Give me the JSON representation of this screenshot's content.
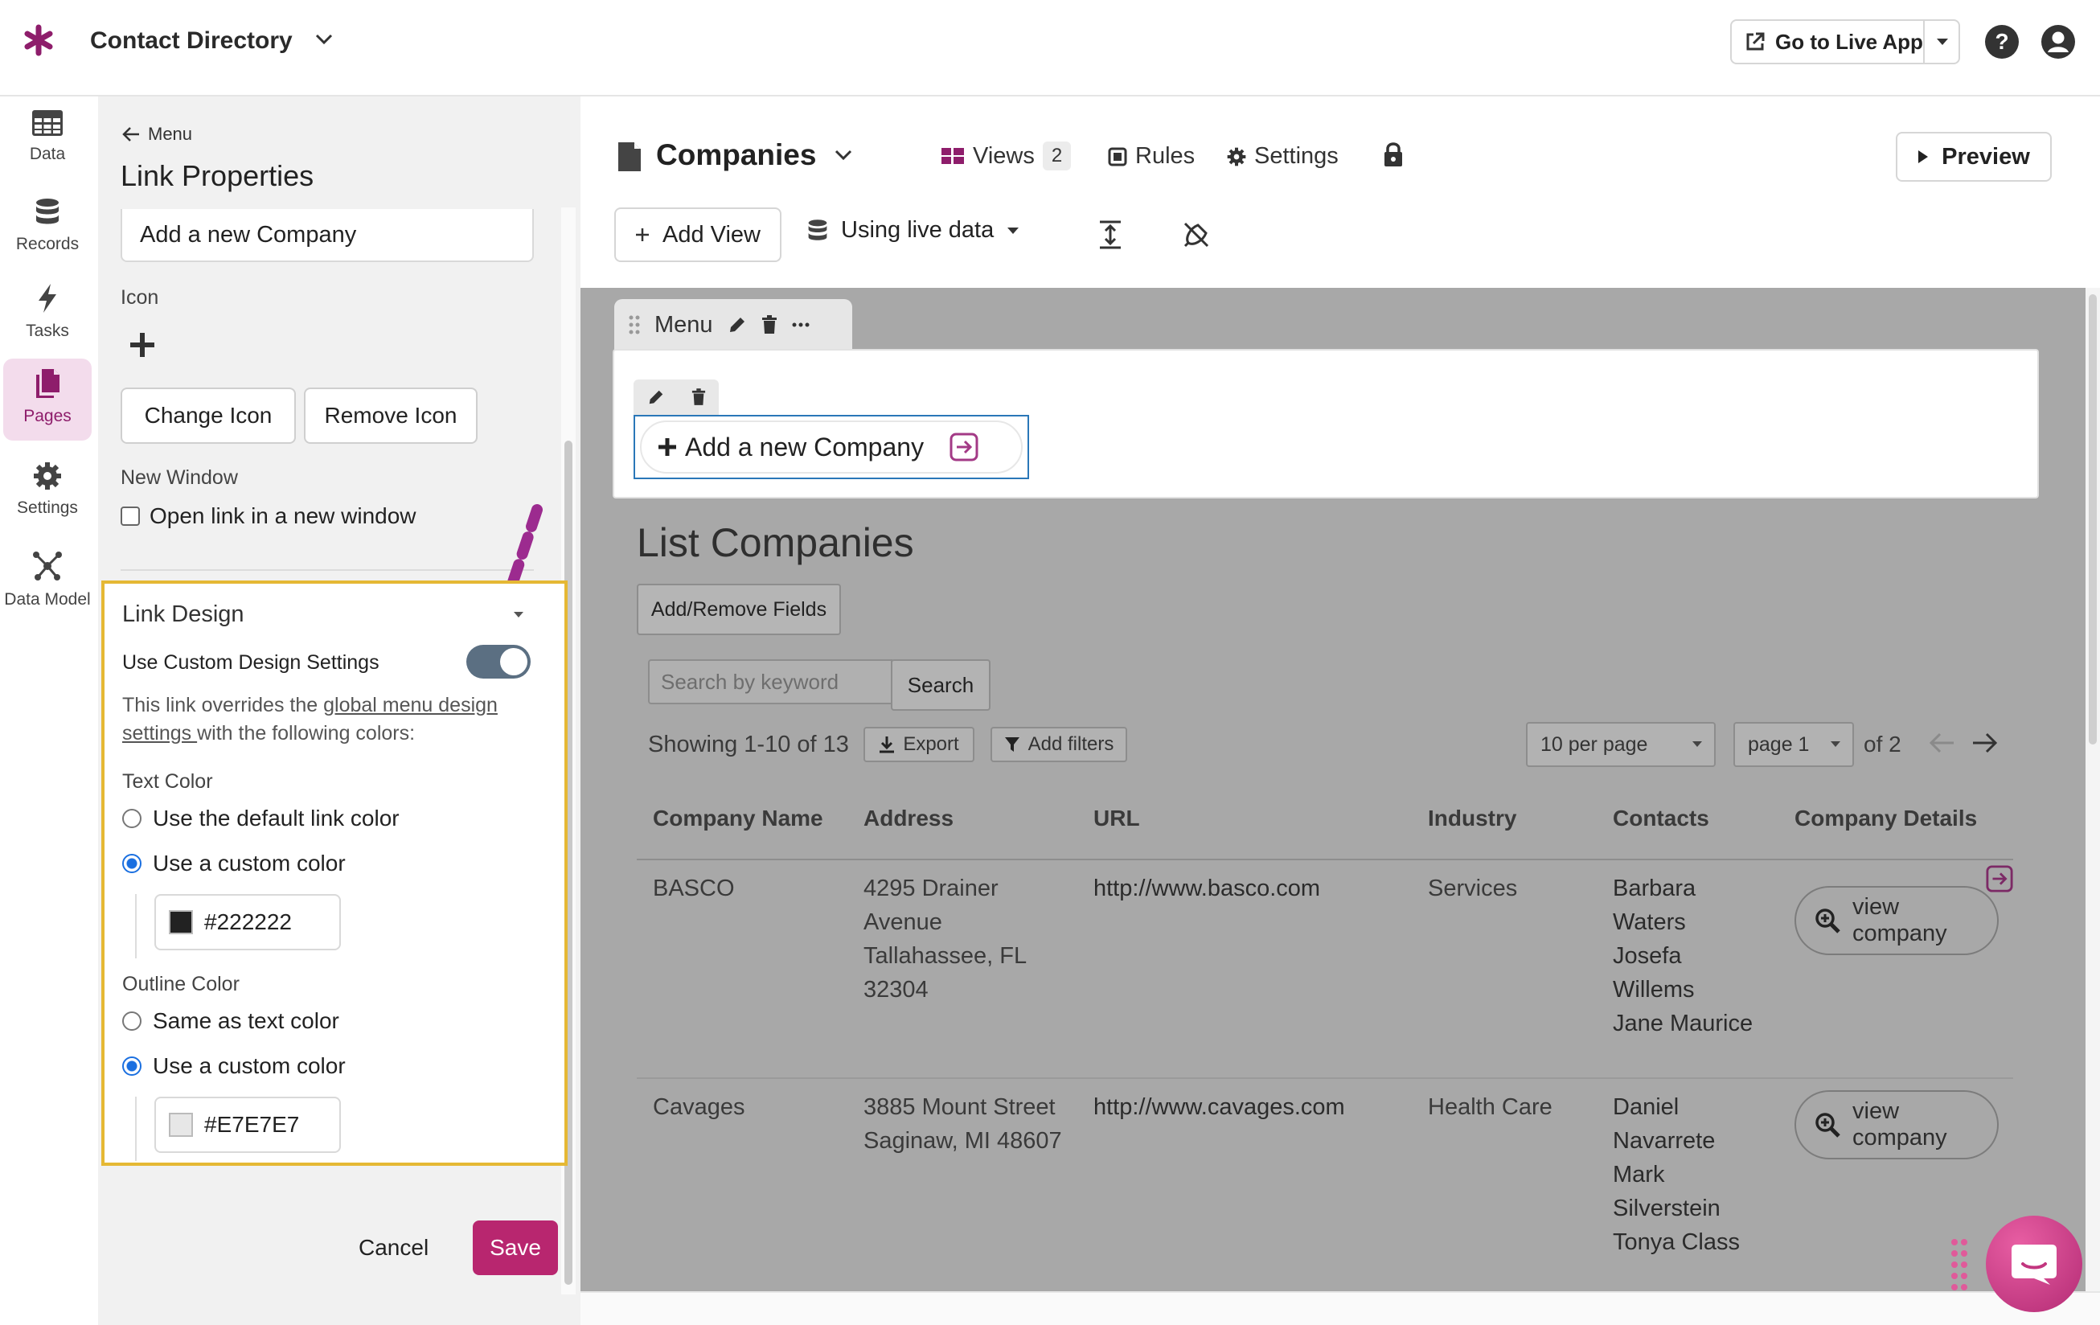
{
  "app": {
    "title": "Contact Directory",
    "go_live_label": "Go to Live App",
    "colors": {
      "brand": "#8e1d6b",
      "save": "#b8266f",
      "toggle": "#5b6f82",
      "highlight": "#e5b834"
    }
  },
  "nav": {
    "items": [
      {
        "label": "Data",
        "icon": "table-icon"
      },
      {
        "label": "Records",
        "icon": "database-icon"
      },
      {
        "label": "Tasks",
        "icon": "bolt-icon"
      },
      {
        "label": "Pages",
        "icon": "pages-icon",
        "active": true
      },
      {
        "label": "Settings",
        "icon": "gear-icon"
      },
      {
        "label": "Data Model",
        "icon": "graph-icon"
      }
    ]
  },
  "panel": {
    "back_label": "Menu",
    "title": "Link Properties",
    "link_text_value": "Add a new Company",
    "icon_label": "Icon",
    "change_icon": "Change Icon",
    "remove_icon": "Remove Icon",
    "new_window_label": "New Window",
    "new_window_checkbox": "Open link in a new window",
    "link_design_title": "Link Design",
    "custom_design_label": "Use Custom Design Settings",
    "custom_design_on": true,
    "override_text_1": "This link overrides the ",
    "override_link": "global menu design settings ",
    "override_text_2": "with the following colors:",
    "text_color_label": "Text Color",
    "text_color_opt1": "Use the default link color",
    "text_color_opt2": "Use a custom color",
    "text_color_value": "#222222",
    "outline_color_label": "Outline Color",
    "outline_opt1": "Same as text color",
    "outline_opt2": "Use a custom color",
    "outline_color_value": "#E7E7E7",
    "cancel": "Cancel",
    "save": "Save"
  },
  "page": {
    "title": "Companies",
    "views_label": "Views",
    "views_count": "2",
    "rules_label": "Rules",
    "settings_label": "Settings",
    "preview_label": "Preview",
    "add_view_label": "Add View",
    "live_data_label": "Using live data"
  },
  "menu_view": {
    "label": "Menu",
    "link_label": "Add a new Company"
  },
  "list_view": {
    "title": "List Companies",
    "add_remove_fields": "Add/Remove Fields",
    "search_placeholder": "Search by keyword",
    "search_button": "Search",
    "showing": "Showing 1-10 of 13",
    "export": "Export",
    "add_filters": "Add filters",
    "per_page": "10 per page",
    "page": "page 1",
    "of_pages": "of 2",
    "columns": [
      "Company Name",
      "Address",
      "URL",
      "Industry",
      "Contacts",
      "Company Details"
    ],
    "view_company": "view company",
    "rows": [
      {
        "name": "BASCO",
        "address": [
          "4295 Drainer",
          "Avenue",
          "Tallahassee, FL",
          "32304"
        ],
        "url": "http://www.basco.com",
        "industry": "Services",
        "contacts": [
          "Barbara",
          "Waters",
          "Josefa",
          "Willems",
          "Jane Maurice"
        ]
      },
      {
        "name": "Cavages",
        "address": [
          "3885 Mount Street",
          "Saginaw, MI 48607"
        ],
        "url": "http://www.cavages.com",
        "industry": "Health Care",
        "contacts": [
          "Daniel",
          "Navarrete",
          "Mark",
          "Silverstein",
          "Tonya Class"
        ]
      }
    ]
  }
}
